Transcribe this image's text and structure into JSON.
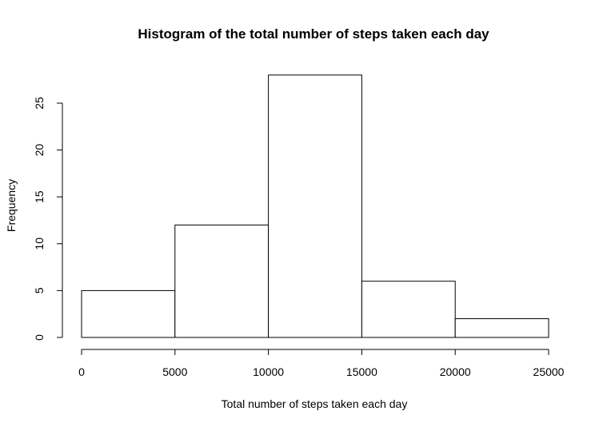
{
  "chart_data": {
    "type": "bar",
    "title": "Histogram of the total number of steps taken each day",
    "xlabel": "Total number of steps taken each day",
    "ylabel": "Frequency",
    "bins": [
      {
        "from": 0,
        "to": 5000,
        "count": 5
      },
      {
        "from": 5000,
        "to": 10000,
        "count": 12
      },
      {
        "from": 10000,
        "to": 15000,
        "count": 28
      },
      {
        "from": 15000,
        "to": 20000,
        "count": 6
      },
      {
        "from": 20000,
        "to": 25000,
        "count": 2
      }
    ],
    "xlim": [
      0,
      25000
    ],
    "ylim": [
      0,
      28
    ],
    "xticks": [
      "0",
      "5000",
      "10000",
      "15000",
      "20000",
      "25000"
    ],
    "yticks": [
      "0",
      "5",
      "10",
      "15",
      "20",
      "25"
    ],
    "grid": false,
    "colors": {
      "bar_fill": "#ffffff",
      "bar_stroke": "#000000"
    }
  }
}
